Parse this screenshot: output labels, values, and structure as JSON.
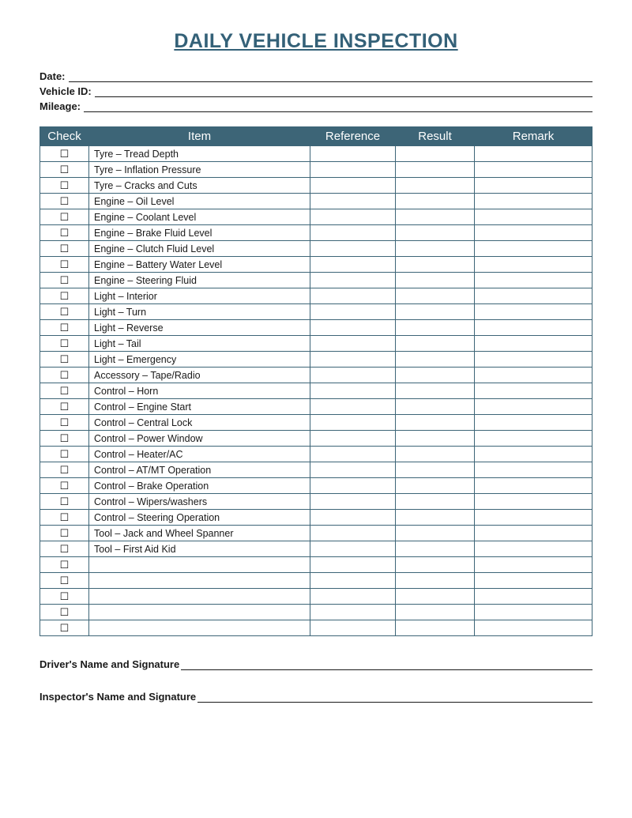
{
  "title": "DAILY VEHICLE INSPECTION",
  "fields": {
    "date_label": "Date:",
    "vehicle_id_label": "Vehicle ID:",
    "mileage_label": "Mileage:"
  },
  "table": {
    "headers": {
      "check": "Check",
      "item": "Item",
      "reference": "Reference",
      "result": "Result",
      "remark": "Remark"
    },
    "checkbox_glyph": "☐",
    "items": [
      "Tyre – Tread Depth",
      "Tyre – Inflation Pressure",
      "Tyre – Cracks and Cuts",
      "Engine – Oil Level",
      "Engine – Coolant Level",
      "Engine – Brake Fluid Level",
      "Engine – Clutch Fluid Level",
      "Engine – Battery Water Level",
      "Engine – Steering Fluid",
      "Light – Interior",
      "Light – Turn",
      "Light – Reverse",
      "Light – Tail",
      "Light – Emergency",
      "Accessory – Tape/Radio",
      "Control – Horn",
      "Control – Engine Start",
      "Control – Central Lock",
      "Control – Power Window",
      "Control – Heater/AC",
      "Control – AT/MT Operation",
      "Control – Brake Operation",
      "Control – Wipers/washers",
      "Control – Steering Operation",
      "Tool – Jack and Wheel Spanner",
      "Tool – First Aid Kid",
      "",
      "",
      "",
      "",
      ""
    ]
  },
  "signatures": {
    "driver_label": "Driver's Name and Signature",
    "inspector_label": "Inspector's Name and Signature"
  },
  "colors": {
    "header_bg": "#3d6577",
    "header_text": "#ffffff",
    "title_color": "#346178",
    "border_color": "#3d6577",
    "text_color": "#1a1a1a",
    "background": "#ffffff"
  }
}
